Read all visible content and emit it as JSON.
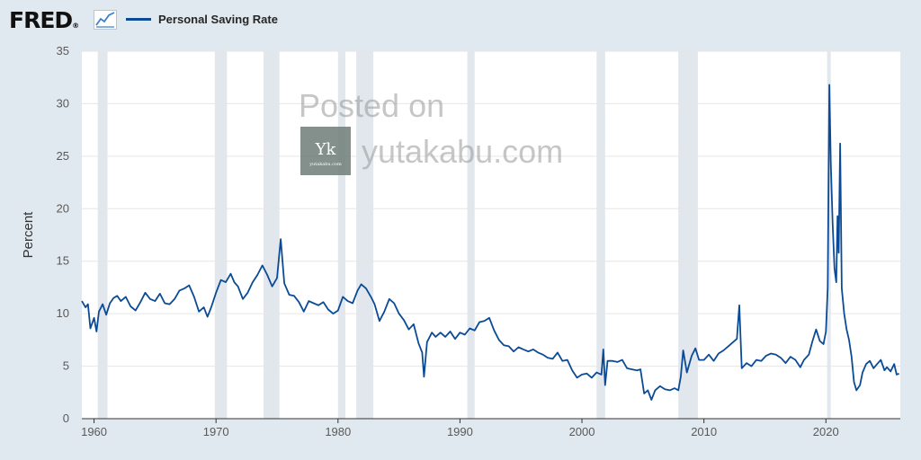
{
  "header": {
    "logo_text": "FRED",
    "logo_mark": "®",
    "logo_icon": "trend-chart-icon"
  },
  "colors": {
    "background": "#e1e9f0",
    "plot_background": "#ffffff",
    "series": "#0b4b95",
    "recession": "#e1e7ec",
    "grid": "#e6e6e6"
  },
  "watermark": {
    "line1": "Posted on",
    "site": "yutakabu.com",
    "badge_letter": "Yk",
    "badge_small": "yutakabu.com"
  },
  "chart_data": {
    "type": "line",
    "title": "",
    "xlabel": "",
    "ylabel": "Percent",
    "xlim": [
      1959.0,
      2026.1
    ],
    "ylim": [
      0,
      35
    ],
    "yticks": [
      0,
      5,
      10,
      15,
      20,
      25,
      30,
      35
    ],
    "xticks": [
      1960,
      1970,
      1980,
      1990,
      2000,
      2010,
      2020
    ],
    "grid": true,
    "legend_position": "top-left",
    "recessions": [
      [
        1960.3,
        1961.1
      ],
      [
        1969.9,
        1970.9
      ],
      [
        1973.9,
        1975.2
      ],
      [
        1980.0,
        1980.6
      ],
      [
        1981.5,
        1982.9
      ],
      [
        1990.6,
        1991.2
      ],
      [
        2001.2,
        2001.9
      ],
      [
        2007.9,
        2009.5
      ],
      [
        2020.1,
        2020.4
      ]
    ],
    "series": [
      {
        "name": "Personal Saving Rate",
        "points": [
          [
            1959.0,
            11.2
          ],
          [
            1959.3,
            10.6
          ],
          [
            1959.5,
            10.9
          ],
          [
            1959.7,
            8.6
          ],
          [
            1960.0,
            9.6
          ],
          [
            1960.2,
            8.3
          ],
          [
            1960.4,
            10.2
          ],
          [
            1960.7,
            10.9
          ],
          [
            1961.0,
            9.9
          ],
          [
            1961.3,
            11.0
          ],
          [
            1961.6,
            11.5
          ],
          [
            1961.9,
            11.7
          ],
          [
            1962.2,
            11.2
          ],
          [
            1962.6,
            11.6
          ],
          [
            1963.0,
            10.7
          ],
          [
            1963.4,
            10.3
          ],
          [
            1963.8,
            11.1
          ],
          [
            1964.2,
            12.0
          ],
          [
            1964.6,
            11.4
          ],
          [
            1965.0,
            11.2
          ],
          [
            1965.4,
            11.9
          ],
          [
            1965.8,
            11.0
          ],
          [
            1966.2,
            10.9
          ],
          [
            1966.6,
            11.4
          ],
          [
            1967.0,
            12.2
          ],
          [
            1967.4,
            12.4
          ],
          [
            1967.8,
            12.7
          ],
          [
            1968.2,
            11.6
          ],
          [
            1968.6,
            10.2
          ],
          [
            1969.0,
            10.6
          ],
          [
            1969.3,
            9.7
          ],
          [
            1969.6,
            10.6
          ],
          [
            1970.0,
            12.0
          ],
          [
            1970.4,
            13.2
          ],
          [
            1970.8,
            13.0
          ],
          [
            1971.2,
            13.8
          ],
          [
            1971.5,
            13.0
          ],
          [
            1971.8,
            12.6
          ],
          [
            1972.2,
            11.4
          ],
          [
            1972.6,
            12.0
          ],
          [
            1973.0,
            13.0
          ],
          [
            1973.4,
            13.7
          ],
          [
            1973.8,
            14.6
          ],
          [
            1974.2,
            13.7
          ],
          [
            1974.6,
            12.6
          ],
          [
            1975.0,
            13.4
          ],
          [
            1975.3,
            17.1
          ],
          [
            1975.6,
            12.9
          ],
          [
            1976.0,
            11.8
          ],
          [
            1976.4,
            11.7
          ],
          [
            1976.8,
            11.1
          ],
          [
            1977.2,
            10.2
          ],
          [
            1977.6,
            11.2
          ],
          [
            1978.0,
            11.0
          ],
          [
            1978.4,
            10.8
          ],
          [
            1978.8,
            11.1
          ],
          [
            1979.2,
            10.4
          ],
          [
            1979.6,
            10.0
          ],
          [
            1980.0,
            10.3
          ],
          [
            1980.4,
            11.6
          ],
          [
            1980.8,
            11.2
          ],
          [
            1981.2,
            11.0
          ],
          [
            1981.6,
            12.2
          ],
          [
            1981.9,
            12.8
          ],
          [
            1982.3,
            12.4
          ],
          [
            1982.7,
            11.6
          ],
          [
            1983.0,
            10.9
          ],
          [
            1983.4,
            9.3
          ],
          [
            1983.8,
            10.2
          ],
          [
            1984.2,
            11.4
          ],
          [
            1984.6,
            11.0
          ],
          [
            1985.0,
            10.0
          ],
          [
            1985.4,
            9.4
          ],
          [
            1985.8,
            8.5
          ],
          [
            1986.2,
            9.0
          ],
          [
            1986.6,
            7.2
          ],
          [
            1986.9,
            6.3
          ],
          [
            1987.05,
            4.0
          ],
          [
            1987.3,
            7.3
          ],
          [
            1987.7,
            8.2
          ],
          [
            1988.0,
            7.8
          ],
          [
            1988.4,
            8.2
          ],
          [
            1988.8,
            7.8
          ],
          [
            1989.2,
            8.3
          ],
          [
            1989.6,
            7.6
          ],
          [
            1990.0,
            8.2
          ],
          [
            1990.4,
            8.0
          ],
          [
            1990.8,
            8.6
          ],
          [
            1991.2,
            8.4
          ],
          [
            1991.6,
            9.2
          ],
          [
            1992.0,
            9.3
          ],
          [
            1992.4,
            9.6
          ],
          [
            1992.8,
            8.4
          ],
          [
            1993.2,
            7.5
          ],
          [
            1993.6,
            7.0
          ],
          [
            1994.0,
            6.9
          ],
          [
            1994.4,
            6.4
          ],
          [
            1994.8,
            6.8
          ],
          [
            1995.2,
            6.6
          ],
          [
            1995.6,
            6.4
          ],
          [
            1996.0,
            6.6
          ],
          [
            1996.4,
            6.3
          ],
          [
            1996.8,
            6.1
          ],
          [
            1997.2,
            5.8
          ],
          [
            1997.6,
            5.7
          ],
          [
            1998.0,
            6.3
          ],
          [
            1998.4,
            5.5
          ],
          [
            1998.8,
            5.6
          ],
          [
            1999.2,
            4.6
          ],
          [
            1999.6,
            3.9
          ],
          [
            2000.0,
            4.2
          ],
          [
            2000.4,
            4.3
          ],
          [
            2000.8,
            3.9
          ],
          [
            2001.2,
            4.4
          ],
          [
            2001.6,
            4.2
          ],
          [
            2001.75,
            6.6
          ],
          [
            2001.9,
            3.2
          ],
          [
            2002.1,
            5.5
          ],
          [
            2002.5,
            5.5
          ],
          [
            2002.9,
            5.4
          ],
          [
            2003.3,
            5.6
          ],
          [
            2003.7,
            4.8
          ],
          [
            2004.1,
            4.7
          ],
          [
            2004.5,
            4.6
          ],
          [
            2004.8,
            4.7
          ],
          [
            2005.1,
            2.4
          ],
          [
            2005.4,
            2.7
          ],
          [
            2005.7,
            1.8
          ],
          [
            2006.0,
            2.7
          ],
          [
            2006.4,
            3.1
          ],
          [
            2006.8,
            2.8
          ],
          [
            2007.2,
            2.7
          ],
          [
            2007.6,
            2.9
          ],
          [
            2007.9,
            2.7
          ],
          [
            2008.1,
            4.0
          ],
          [
            2008.3,
            6.5
          ],
          [
            2008.6,
            4.4
          ],
          [
            2009.0,
            6.0
          ],
          [
            2009.3,
            6.7
          ],
          [
            2009.6,
            5.6
          ],
          [
            2010.0,
            5.6
          ],
          [
            2010.4,
            6.1
          ],
          [
            2010.8,
            5.5
          ],
          [
            2011.2,
            6.2
          ],
          [
            2011.6,
            6.5
          ],
          [
            2012.0,
            6.9
          ],
          [
            2012.4,
            7.3
          ],
          [
            2012.7,
            7.6
          ],
          [
            2012.9,
            10.8
          ],
          [
            2013.1,
            4.8
          ],
          [
            2013.5,
            5.3
          ],
          [
            2013.9,
            5.0
          ],
          [
            2014.3,
            5.6
          ],
          [
            2014.7,
            5.5
          ],
          [
            2015.1,
            6.0
          ],
          [
            2015.5,
            6.2
          ],
          [
            2015.9,
            6.1
          ],
          [
            2016.3,
            5.8
          ],
          [
            2016.7,
            5.3
          ],
          [
            2017.1,
            5.9
          ],
          [
            2017.5,
            5.6
          ],
          [
            2017.9,
            4.9
          ],
          [
            2018.2,
            5.6
          ],
          [
            2018.6,
            6.1
          ],
          [
            2018.9,
            7.4
          ],
          [
            2019.2,
            8.5
          ],
          [
            2019.5,
            7.4
          ],
          [
            2019.8,
            7.1
          ],
          [
            2020.0,
            8.3
          ],
          [
            2020.15,
            12.5
          ],
          [
            2020.28,
            31.8
          ],
          [
            2020.4,
            24.4
          ],
          [
            2020.55,
            18.7
          ],
          [
            2020.7,
            14.3
          ],
          [
            2020.85,
            13.0
          ],
          [
            2020.95,
            19.3
          ],
          [
            2021.05,
            15.8
          ],
          [
            2021.17,
            26.2
          ],
          [
            2021.3,
            12.4
          ],
          [
            2021.5,
            10.0
          ],
          [
            2021.7,
            8.5
          ],
          [
            2021.9,
            7.5
          ],
          [
            2022.1,
            5.9
          ],
          [
            2022.3,
            3.5
          ],
          [
            2022.5,
            2.7
          ],
          [
            2022.8,
            3.2
          ],
          [
            2023.0,
            4.4
          ],
          [
            2023.3,
            5.2
          ],
          [
            2023.6,
            5.5
          ],
          [
            2023.9,
            4.8
          ],
          [
            2024.2,
            5.2
          ],
          [
            2024.5,
            5.6
          ],
          [
            2024.8,
            4.6
          ],
          [
            2025.0,
            4.9
          ],
          [
            2025.3,
            4.5
          ],
          [
            2025.6,
            5.2
          ],
          [
            2025.8,
            4.2
          ],
          [
            2026.0,
            4.3
          ]
        ]
      }
    ]
  }
}
